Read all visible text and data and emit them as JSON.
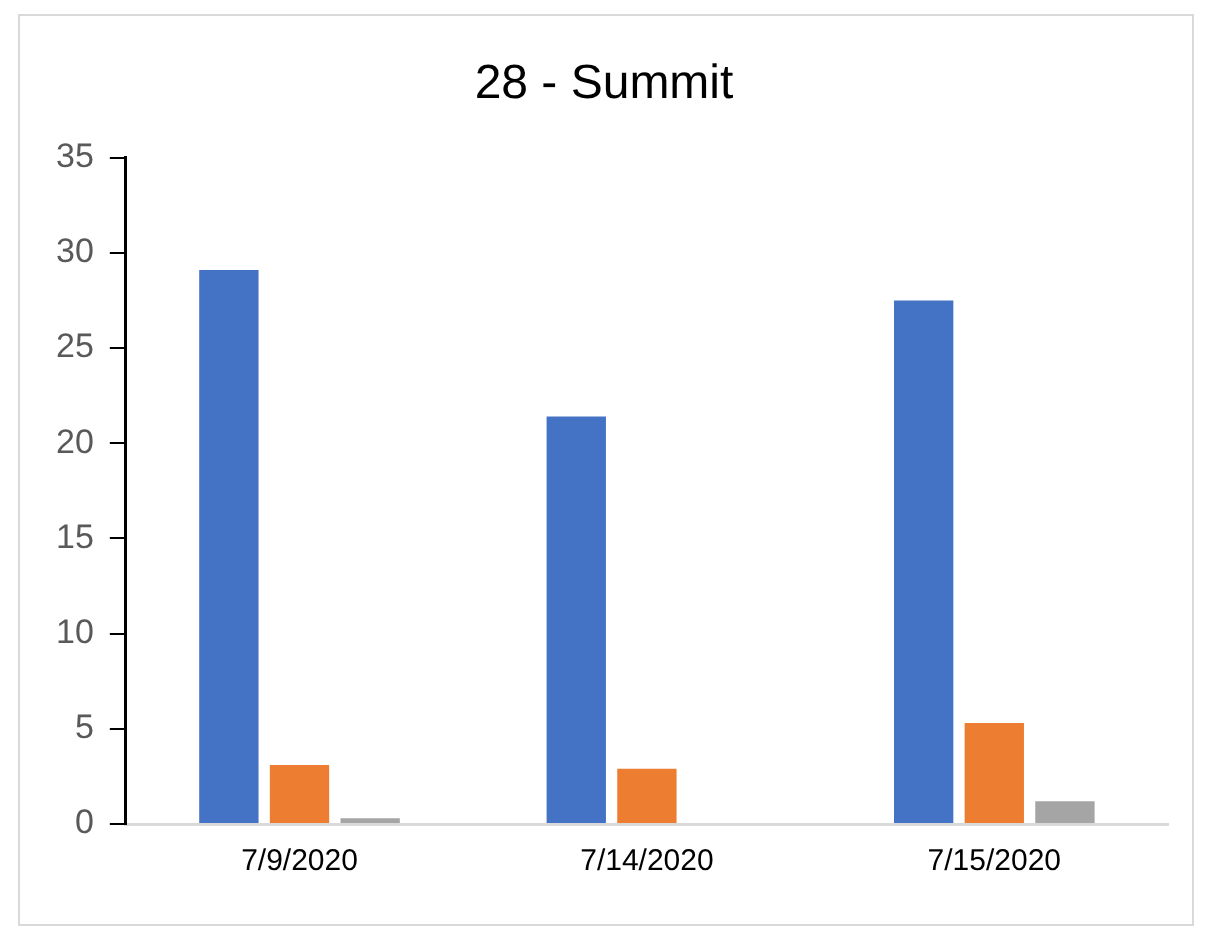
{
  "chart_data": {
    "type": "bar",
    "title": "28 - Summit",
    "categories": [
      "7/9/2020",
      "7/14/2020",
      "7/15/2020"
    ],
    "series": [
      {
        "color": "#4472c4",
        "values": [
          29.1,
          21.4,
          27.5
        ]
      },
      {
        "color": "#ed7d31",
        "values": [
          3.1,
          2.9,
          5.3
        ]
      },
      {
        "color": "#a5a5a5",
        "values": [
          0.3,
          0,
          1.2
        ]
      }
    ],
    "ylim": [
      0,
      35
    ],
    "yticks": [
      0,
      5,
      10,
      15,
      20,
      25,
      30,
      35
    ],
    "legend": false
  }
}
